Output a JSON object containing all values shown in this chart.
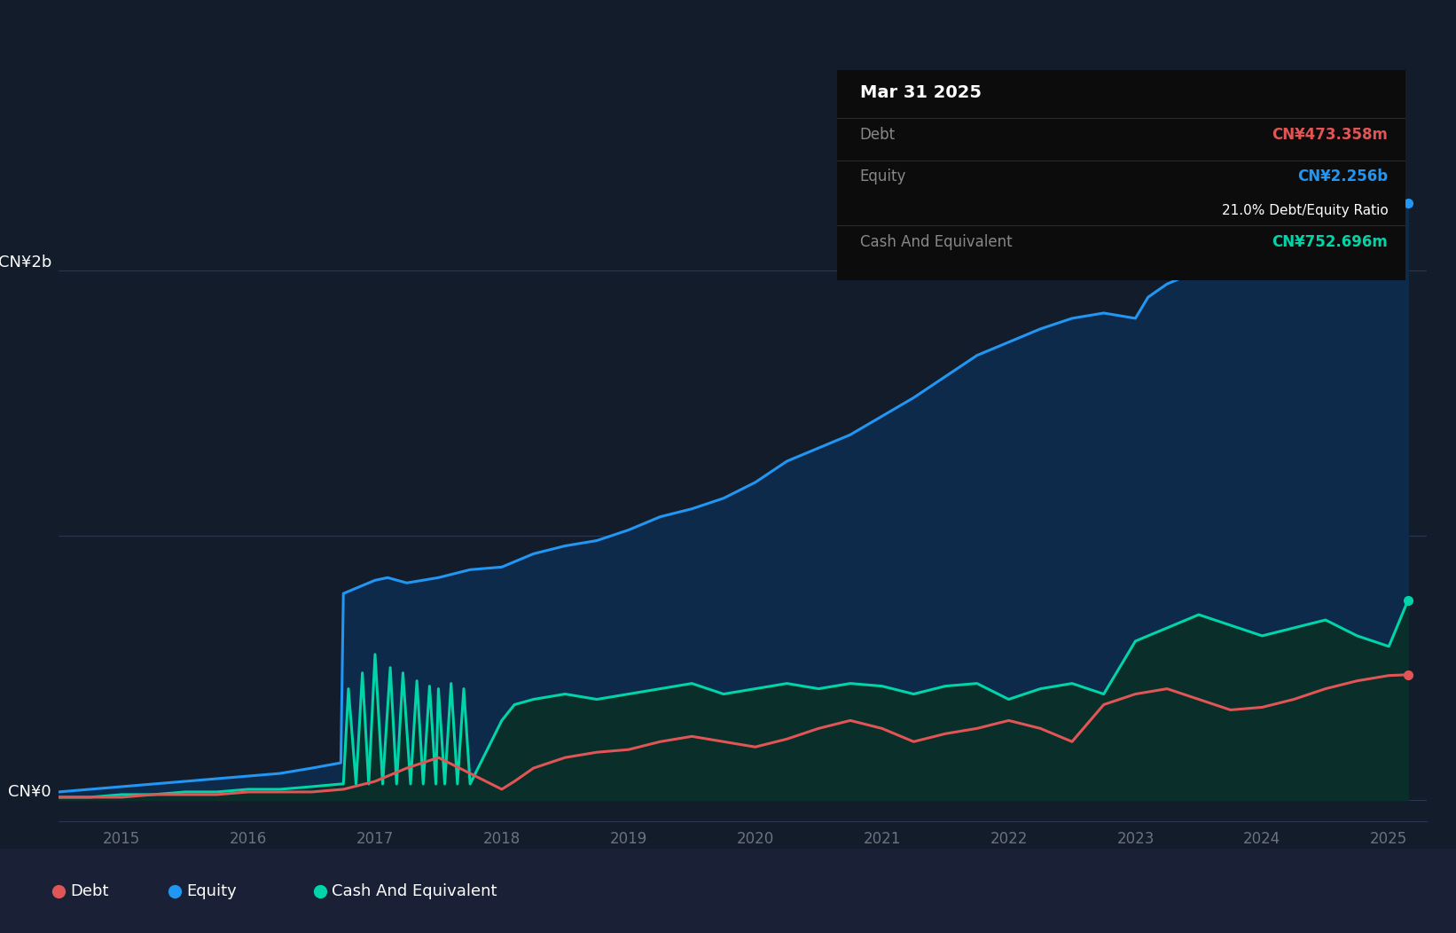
{
  "background_color": "#131c2b",
  "plot_bg_color": "#131c2b",
  "equity_color": "#2196f3",
  "equity_fill_color": "#0d2a4a",
  "debt_color": "#e05555",
  "cash_color": "#00d4a8",
  "cash_fill_color": "#0a2e2a",
  "grid_color": "#2a3550",
  "ylabel_2b": "CN¥2b",
  "ylabel_0": "CN¥0",
  "x_ticks": [
    2015,
    2016,
    2017,
    2018,
    2019,
    2020,
    2021,
    2022,
    2023,
    2024,
    2025
  ],
  "equity_data": {
    "dates": [
      2014.5,
      2014.75,
      2015.0,
      2015.25,
      2015.5,
      2015.75,
      2016.0,
      2016.25,
      2016.5,
      2016.73,
      2016.75,
      2017.0,
      2017.1,
      2017.25,
      2017.5,
      2017.75,
      2018.0,
      2018.25,
      2018.5,
      2018.75,
      2019.0,
      2019.25,
      2019.5,
      2019.75,
      2020.0,
      2020.25,
      2020.5,
      2020.75,
      2021.0,
      2021.25,
      2021.5,
      2021.75,
      2022.0,
      2022.25,
      2022.5,
      2022.75,
      2023.0,
      2023.1,
      2023.25,
      2023.5,
      2023.75,
      2024.0,
      2024.25,
      2024.5,
      2024.75,
      2025.0,
      2025.15
    ],
    "values": [
      0.03,
      0.04,
      0.05,
      0.06,
      0.07,
      0.08,
      0.09,
      0.1,
      0.12,
      0.14,
      0.78,
      0.83,
      0.84,
      0.82,
      0.84,
      0.87,
      0.88,
      0.93,
      0.96,
      0.98,
      1.02,
      1.07,
      1.1,
      1.14,
      1.2,
      1.28,
      1.33,
      1.38,
      1.45,
      1.52,
      1.6,
      1.68,
      1.73,
      1.78,
      1.82,
      1.84,
      1.82,
      1.9,
      1.95,
      2.0,
      2.05,
      2.08,
      2.12,
      2.18,
      2.22,
      2.26,
      2.256
    ]
  },
  "debt_data": {
    "dates": [
      2014.5,
      2014.75,
      2015.0,
      2015.25,
      2015.5,
      2015.75,
      2016.0,
      2016.25,
      2016.5,
      2016.75,
      2017.0,
      2017.25,
      2017.5,
      2017.75,
      2018.0,
      2018.1,
      2018.25,
      2018.5,
      2018.75,
      2019.0,
      2019.25,
      2019.5,
      2019.75,
      2020.0,
      2020.25,
      2020.5,
      2020.75,
      2021.0,
      2021.25,
      2021.5,
      2021.75,
      2022.0,
      2022.25,
      2022.5,
      2022.75,
      2023.0,
      2023.25,
      2023.5,
      2023.75,
      2024.0,
      2024.25,
      2024.5,
      2024.75,
      2025.0,
      2025.15
    ],
    "values": [
      0.01,
      0.01,
      0.01,
      0.02,
      0.02,
      0.02,
      0.03,
      0.03,
      0.03,
      0.04,
      0.07,
      0.12,
      0.16,
      0.1,
      0.04,
      0.07,
      0.12,
      0.16,
      0.18,
      0.19,
      0.22,
      0.24,
      0.22,
      0.2,
      0.23,
      0.27,
      0.3,
      0.27,
      0.22,
      0.25,
      0.27,
      0.3,
      0.27,
      0.22,
      0.36,
      0.4,
      0.42,
      0.38,
      0.34,
      0.35,
      0.38,
      0.42,
      0.45,
      0.47,
      0.473
    ]
  },
  "cash_data": {
    "dates": [
      2014.5,
      2014.75,
      2015.0,
      2015.25,
      2015.5,
      2015.75,
      2016.0,
      2016.25,
      2016.5,
      2016.73,
      2016.75,
      2016.79,
      2016.85,
      2016.9,
      2016.95,
      2017.0,
      2017.06,
      2017.12,
      2017.17,
      2017.22,
      2017.28,
      2017.33,
      2017.38,
      2017.43,
      2017.48,
      2017.5,
      2017.55,
      2017.6,
      2017.65,
      2017.7,
      2017.75,
      2018.0,
      2018.1,
      2018.25,
      2018.5,
      2018.75,
      2019.0,
      2019.25,
      2019.5,
      2019.75,
      2020.0,
      2020.25,
      2020.5,
      2020.75,
      2021.0,
      2021.25,
      2021.5,
      2021.75,
      2022.0,
      2022.25,
      2022.5,
      2022.75,
      2023.0,
      2023.25,
      2023.5,
      2023.75,
      2024.0,
      2024.25,
      2024.5,
      2024.75,
      2025.0,
      2025.15
    ],
    "values": [
      0.01,
      0.01,
      0.02,
      0.02,
      0.03,
      0.03,
      0.04,
      0.04,
      0.05,
      0.06,
      0.06,
      0.42,
      0.06,
      0.48,
      0.06,
      0.55,
      0.06,
      0.5,
      0.06,
      0.48,
      0.06,
      0.45,
      0.06,
      0.43,
      0.06,
      0.42,
      0.06,
      0.44,
      0.06,
      0.42,
      0.06,
      0.3,
      0.36,
      0.38,
      0.4,
      0.38,
      0.4,
      0.42,
      0.44,
      0.4,
      0.42,
      0.44,
      0.42,
      0.44,
      0.43,
      0.4,
      0.43,
      0.44,
      0.38,
      0.42,
      0.44,
      0.4,
      0.6,
      0.65,
      0.7,
      0.66,
      0.62,
      0.65,
      0.68,
      0.62,
      0.58,
      0.753
    ]
  },
  "tooltip": {
    "date": "Mar 31 2025",
    "debt_label": "Debt",
    "debt_value": "CN¥473.358m",
    "equity_label": "Equity",
    "equity_value": "CN¥2.256b",
    "ratio_text": "21.0% Debt/Equity Ratio",
    "cash_label": "Cash And Equivalent",
    "cash_value": "CN¥752.696m"
  },
  "legend_items": [
    {
      "label": "Debt",
      "color": "#e05555"
    },
    {
      "label": "Equity",
      "color": "#2196f3"
    },
    {
      "label": "Cash And Equivalent",
      "color": "#00d4a8"
    }
  ],
  "ylim": [
    -0.08,
    2.6
  ],
  "xlim": [
    2014.5,
    2025.3
  ]
}
